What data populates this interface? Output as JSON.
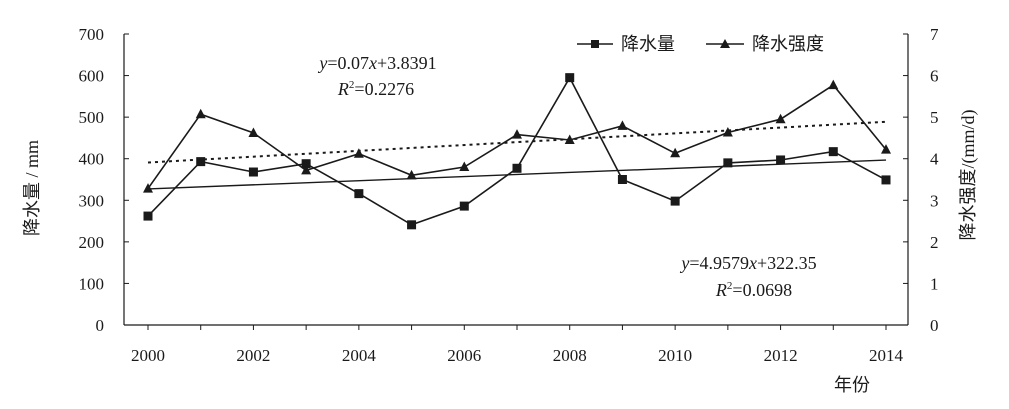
{
  "chart_data": {
    "type": "line",
    "xlabel": "年份",
    "ylabel_left": "降水量 / mm",
    "ylabel_right": "降水强度/(mm/d)",
    "x_range": [
      2000,
      2014
    ],
    "x_ticks": [
      "2000",
      "2002",
      "2004",
      "2006",
      "2008",
      "2010",
      "2012",
      "2014"
    ],
    "ylim_left": [
      0,
      700
    ],
    "yticks_left": [
      "0",
      "100",
      "200",
      "300",
      "400",
      "500",
      "600",
      "700"
    ],
    "ylim_right": [
      0,
      7
    ],
    "yticks_right": [
      "0",
      "1",
      "2",
      "3",
      "4",
      "5",
      "6",
      "7"
    ],
    "grid": false,
    "legend_position": "top-right",
    "x": [
      2000,
      2001,
      2002,
      2003,
      2004,
      2005,
      2006,
      2007,
      2008,
      2009,
      2010,
      2011,
      2012,
      2013,
      2014
    ],
    "series": [
      {
        "name": "降水量",
        "axis": "left",
        "marker": "square",
        "values": [
          262,
          393,
          368,
          388,
          316,
          241,
          286,
          377,
          595,
          350,
          298,
          390,
          397,
          417,
          349
        ]
      },
      {
        "name": "降水强度",
        "axis": "right",
        "marker": "triangle",
        "values": [
          3.28,
          5.07,
          4.62,
          3.72,
          4.12,
          3.6,
          3.8,
          4.58,
          4.45,
          4.79,
          4.13,
          4.63,
          4.95,
          5.77,
          4.22
        ]
      }
    ],
    "trendlines": [
      {
        "series": "降水强度",
        "style": "dotted",
        "slope": 0.07,
        "intercept": 3.8391,
        "equation": {
          "y": "y",
          "eq": "=0.07",
          "x": "x",
          "rest": "+3.8391",
          "r": "R",
          "sup": "2",
          "rval": "=0.2276"
        }
      },
      {
        "series": "降水量",
        "style": "solid",
        "slope": 4.9579,
        "intercept": 322.35,
        "equation": {
          "y": "y",
          "eq": "=4.9579",
          "x": "x",
          "rest": "+322.35",
          "r": "R",
          "sup": "2",
          "rval": "=0.0698"
        }
      }
    ],
    "colors": {
      "line": "#1a1a1a",
      "axis": "#1a1a1a"
    }
  }
}
